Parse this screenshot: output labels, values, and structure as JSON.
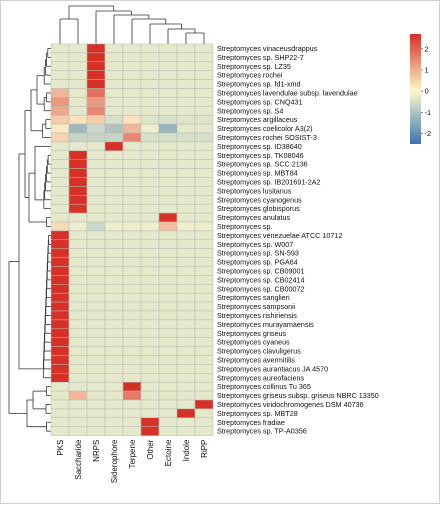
{
  "chart_data": {
    "type": "heatmap",
    "title": "",
    "xlabel": "",
    "ylabel": "",
    "columns": [
      "PKS",
      "Saccharide",
      "NRPS",
      "Siderophore",
      "Terpene",
      "Other",
      "Ectoine",
      "Indole",
      "RiPP"
    ],
    "rows": [
      "Streptomyces vinaceusdrappus",
      "Streptomyces sp. SHP22-7",
      "Streptomyces sp. LZ35",
      "Streptomyces rochei",
      "Streptomyces sp. fd1-xmd",
      "Streptomyces lavendulae subsp. lavendulae",
      "Streptomyces sp. CNQ431",
      "Streptomyces sp. S4",
      "Streptomyces argillaceus",
      "Streptomyces coelicolor A3(2)",
      "Streptomyces rochei SOSIST-3",
      "Streptomyces sp. ID38640",
      "Streptomyces sp. TK08046",
      "Streptomyces sp. SCC 2136",
      "Streptomyces sp. MBT84",
      "Streptomyces sp. IB201691-2A2",
      "Streptomyces lusitanus",
      "Streptomyces cyanogenus",
      "Streptomyces globisporus",
      "Streptomyces anulatus",
      "Streptomyces sp.",
      "Streptomyces venezuelae ATCC 10712",
      "Streptomyces sp. W007",
      "Streptomyces sp. SN-593",
      "Streptomyces sp. PGA64",
      "Streptomyces sp. CB09001",
      "Streptomyces sp. CB02414",
      "Streptomyces sp. CB00072",
      "Streptomyces sanglieri",
      "Streptomyces sampsonii",
      "Streptomyces rishiriensis",
      "Streptomyces murayamaensis",
      "Streptomyces griseus",
      "Streptomyces cyaneus",
      "Streptomyces clavuligerus",
      "Streptomyces avermitilis",
      "Streptomyces aurantiacus JA 4570",
      "Streptomyces aureofaciens",
      "Streptomyces collinus Tu 365",
      "Streptomyces griseus subsp. griseus NBRC 13350",
      "Streptomyces viridochromogenes DSM 40736",
      "Streptomyces sp. MBT28",
      "Streptomyces fradiae",
      "Streptomyces sp. TP-A0356"
    ],
    "values": [
      [
        -0.3,
        -0.3,
        2.7,
        -0.3,
        -0.3,
        -0.3,
        -0.3,
        -0.3,
        -0.3
      ],
      [
        -0.3,
        -0.3,
        2.7,
        -0.3,
        -0.3,
        -0.3,
        -0.3,
        -0.3,
        -0.3
      ],
      [
        -0.3,
        -0.3,
        2.7,
        -0.3,
        -0.3,
        -0.3,
        -0.3,
        -0.3,
        -0.3
      ],
      [
        -0.3,
        -0.3,
        2.7,
        -0.3,
        -0.3,
        -0.3,
        -0.3,
        -0.3,
        -0.3
      ],
      [
        -0.3,
        -0.3,
        2.7,
        -0.3,
        -0.3,
        -0.3,
        -0.3,
        -0.3,
        -0.3
      ],
      [
        0.9,
        -0.3,
        1.8,
        -0.3,
        -0.3,
        -0.3,
        -0.3,
        -0.3,
        -0.3
      ],
      [
        1.3,
        -0.3,
        1.3,
        -0.3,
        -0.3,
        -0.3,
        -0.3,
        -0.3,
        -0.3
      ],
      [
        1.1,
        -0.3,
        1.5,
        -0.3,
        -0.3,
        -0.3,
        -0.3,
        -0.3,
        -0.3
      ],
      [
        0.6,
        0.3,
        0.6,
        -0.5,
        0.3,
        -0.4,
        -0.5,
        -0.4,
        -0.4
      ],
      [
        0.2,
        -1.2,
        -0.6,
        -1.0,
        0.9,
        -0.2,
        -1.3,
        -0.3,
        -0.3
      ],
      [
        0.5,
        -0.7,
        -0.7,
        -0.7,
        1.5,
        -0.5,
        -0.5,
        -0.5,
        -0.5
      ],
      [
        -0.3,
        -0.3,
        -0.3,
        2.7,
        -0.3,
        -0.3,
        -0.3,
        -0.3,
        -0.3
      ],
      [
        -0.3,
        2.7,
        -0.3,
        -0.3,
        -0.3,
        -0.3,
        -0.3,
        -0.3,
        -0.3
      ],
      [
        -0.3,
        2.7,
        -0.3,
        -0.3,
        -0.3,
        -0.3,
        -0.3,
        -0.3,
        -0.3
      ],
      [
        -0.3,
        2.7,
        -0.3,
        -0.3,
        -0.3,
        -0.3,
        -0.3,
        -0.3,
        -0.3
      ],
      [
        -0.3,
        2.7,
        -0.3,
        -0.3,
        -0.3,
        -0.3,
        -0.3,
        -0.3,
        -0.3
      ],
      [
        -0.3,
        2.7,
        -0.3,
        -0.3,
        -0.3,
        -0.3,
        -0.3,
        -0.3,
        -0.3
      ],
      [
        -0.3,
        2.7,
        -0.3,
        -0.3,
        -0.3,
        -0.3,
        -0.3,
        -0.3,
        -0.3
      ],
      [
        -0.3,
        2.7,
        -0.3,
        -0.3,
        -0.3,
        -0.3,
        -0.3,
        -0.3,
        -0.3
      ],
      [
        -0.3,
        -0.3,
        -0.3,
        -0.3,
        -0.3,
        -0.3,
        2.7,
        -0.3,
        -0.3
      ],
      [
        0.4,
        -0.2,
        -0.6,
        -0.2,
        -0.2,
        -0.2,
        0.8,
        -0.2,
        -0.2
      ],
      [
        2.7,
        -0.3,
        -0.3,
        -0.3,
        -0.3,
        -0.3,
        -0.3,
        -0.3,
        -0.3
      ],
      [
        2.7,
        -0.3,
        -0.3,
        -0.3,
        -0.3,
        -0.3,
        -0.3,
        -0.3,
        -0.3
      ],
      [
        2.7,
        -0.3,
        -0.3,
        -0.3,
        -0.3,
        -0.3,
        -0.3,
        -0.3,
        -0.3
      ],
      [
        2.7,
        -0.3,
        -0.3,
        -0.3,
        -0.3,
        -0.3,
        -0.3,
        -0.3,
        -0.3
      ],
      [
        2.7,
        -0.3,
        -0.3,
        -0.3,
        -0.3,
        -0.3,
        -0.3,
        -0.3,
        -0.3
      ],
      [
        2.7,
        -0.3,
        -0.3,
        -0.3,
        -0.3,
        -0.3,
        -0.3,
        -0.3,
        -0.3
      ],
      [
        2.7,
        -0.3,
        -0.3,
        -0.3,
        -0.3,
        -0.3,
        -0.3,
        -0.3,
        -0.3
      ],
      [
        2.7,
        -0.3,
        -0.3,
        -0.3,
        -0.3,
        -0.3,
        -0.3,
        -0.3,
        -0.3
      ],
      [
        2.7,
        -0.3,
        -0.3,
        -0.3,
        -0.3,
        -0.3,
        -0.3,
        -0.3,
        -0.3
      ],
      [
        2.7,
        -0.3,
        -0.3,
        -0.3,
        -0.3,
        -0.3,
        -0.3,
        -0.3,
        -0.3
      ],
      [
        2.7,
        -0.3,
        -0.3,
        -0.3,
        -0.3,
        -0.3,
        -0.3,
        -0.3,
        -0.3
      ],
      [
        2.7,
        -0.3,
        -0.3,
        -0.3,
        -0.3,
        -0.3,
        -0.3,
        -0.3,
        -0.3
      ],
      [
        2.7,
        -0.3,
        -0.3,
        -0.3,
        -0.3,
        -0.3,
        -0.3,
        -0.3,
        -0.3
      ],
      [
        2.7,
        -0.3,
        -0.3,
        -0.3,
        -0.3,
        -0.3,
        -0.3,
        -0.3,
        -0.3
      ],
      [
        2.7,
        -0.3,
        -0.3,
        -0.3,
        -0.3,
        -0.3,
        -0.3,
        -0.3,
        -0.3
      ],
      [
        2.7,
        -0.3,
        -0.3,
        -0.3,
        -0.3,
        -0.3,
        -0.3,
        -0.3,
        -0.3
      ],
      [
        2.7,
        -0.3,
        -0.3,
        -0.3,
        -0.3,
        -0.3,
        -0.3,
        -0.3,
        -0.3
      ],
      [
        -0.3,
        -0.3,
        -0.3,
        -0.3,
        2.7,
        -0.3,
        -0.3,
        -0.3,
        -0.3
      ],
      [
        -0.3,
        0.9,
        -0.3,
        -0.3,
        1.7,
        -0.3,
        -0.3,
        -0.3,
        -0.3
      ],
      [
        -0.3,
        -0.3,
        -0.3,
        -0.3,
        -0.3,
        -0.3,
        -0.3,
        -0.3,
        2.7
      ],
      [
        -0.3,
        -0.3,
        -0.3,
        -0.3,
        -0.3,
        -0.3,
        -0.3,
        2.7,
        -0.3
      ],
      [
        -0.3,
        -0.3,
        -0.3,
        -0.3,
        -0.3,
        2.7,
        -0.3,
        -0.3,
        -0.3
      ],
      [
        -0.3,
        -0.3,
        -0.3,
        -0.3,
        -0.3,
        2.7,
        -0.3,
        -0.3,
        -0.3
      ]
    ],
    "color_scale": {
      "min": -2.5,
      "max": 2.7,
      "low": "#3a75ad",
      "mid": "#fcf9d0",
      "high": "#d73027"
    },
    "legend": {
      "ticks": [
        2,
        1,
        0,
        -1,
        -2
      ],
      "placement": "top-right"
    },
    "dendrogram": {
      "rows": true,
      "columns": true
    },
    "grid": true
  }
}
